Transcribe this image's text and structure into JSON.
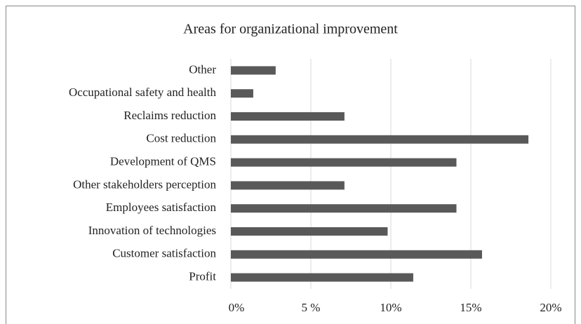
{
  "chart_data": {
    "type": "bar",
    "orientation": "horizontal",
    "title": "Areas for organizational improvement",
    "categories": [
      "Profit",
      "Customer satisfaction",
      "Innovation of technologies",
      "Employees satisfaction",
      "Other stakeholders perception",
      "Development of QMS",
      "Cost reduction",
      "Reclaims reduction",
      "Occupational safety and health",
      "Other"
    ],
    "values": [
      11.4,
      15.7,
      9.8,
      14.1,
      7.1,
      14.1,
      18.6,
      7.1,
      1.4,
      2.8
    ],
    "color": "#595959",
    "xlim": [
      0,
      20
    ],
    "xticks": [
      {
        "value": 0,
        "label": "0%"
      },
      {
        "value": 5,
        "label": "5 %"
      },
      {
        "value": 10,
        "label": "10%"
      },
      {
        "value": 15,
        "label": "15%"
      },
      {
        "value": 20,
        "label": "20%"
      }
    ],
    "grid": true
  }
}
